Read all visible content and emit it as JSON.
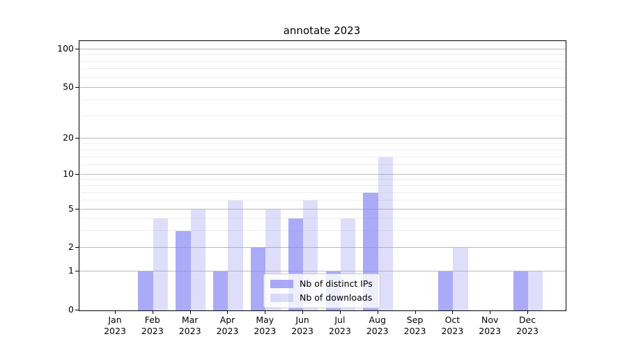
{
  "chart_data": {
    "type": "bar",
    "title": "annotate 2023",
    "categories": [
      "Jan",
      "Feb",
      "Mar",
      "Apr",
      "May",
      "Jun",
      "Jul",
      "Aug",
      "Sep",
      "Oct",
      "Nov",
      "Dec"
    ],
    "category_year": "2023",
    "series": [
      {
        "name": "Nb of distinct IPs",
        "color": "rgba(134,134,242,0.7)",
        "values": [
          0,
          1,
          3,
          1,
          2,
          4,
          1,
          7,
          0,
          1,
          0,
          1
        ]
      },
      {
        "name": "Nb of downloads",
        "color": "rgba(134,134,242,0.27)",
        "values": [
          0,
          4,
          5,
          6,
          5,
          6,
          4,
          14,
          0,
          2,
          0,
          1
        ]
      }
    ],
    "yaxis": {
      "scale": "symlog-like",
      "ticks": [
        0,
        1,
        2,
        5,
        10,
        20,
        50,
        100
      ],
      "minor_ticks": [
        3,
        4,
        6,
        7,
        8,
        9,
        12,
        14,
        16,
        18,
        30,
        40,
        60,
        70,
        80,
        90
      ],
      "range": [
        0,
        110
      ]
    },
    "grid": true,
    "legend": {
      "position": "lower-center",
      "items": [
        "Nb of distinct IPs",
        "Nb of downloads"
      ]
    }
  }
}
